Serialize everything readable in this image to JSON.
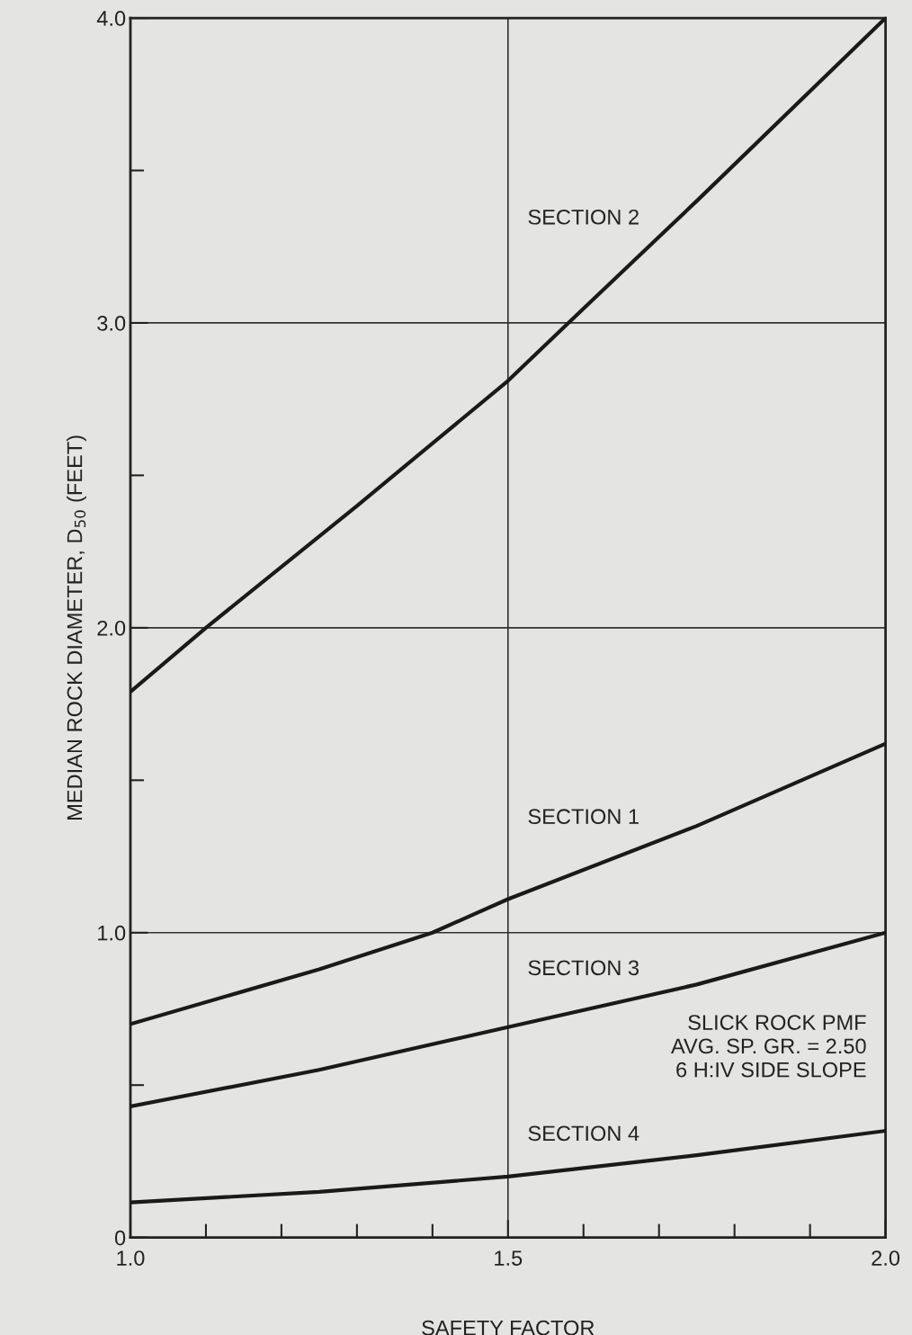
{
  "chart_data": {
    "type": "line",
    "xlabel": "SAFETY FACTOR",
    "ylabel": "MEDIAN ROCK DIAMETER, D$_{50}$ (FEET)",
    "series": [
      {
        "name": "SECTION 2",
        "color": "#1a1a1a",
        "x": [
          1.0,
          1.1,
          1.3,
          1.5,
          1.58,
          1.75,
          2.0
        ],
        "values": [
          1.79,
          2.0,
          2.4,
          2.81,
          3.0,
          3.4,
          4.0
        ]
      },
      {
        "name": "SECTION 1",
        "color": "#1a1a1a",
        "x": [
          1.0,
          1.25,
          1.4,
          1.5,
          1.75,
          2.0
        ],
        "values": [
          0.7,
          0.88,
          1.0,
          1.11,
          1.35,
          1.62
        ]
      },
      {
        "name": "SECTION 3",
        "color": "#1a1a1a",
        "x": [
          1.0,
          1.25,
          1.5,
          1.75,
          2.0
        ],
        "values": [
          0.43,
          0.55,
          0.69,
          0.83,
          1.0
        ]
      },
      {
        "name": "SECTION 4",
        "color": "#1a1a1a",
        "x": [
          1.0,
          1.25,
          1.5,
          1.75,
          2.0
        ],
        "values": [
          0.115,
          0.15,
          0.2,
          0.27,
          0.35
        ]
      }
    ],
    "annotations": [
      "SLICK ROCK PMF\nAVG. SP. GR. = 2.50\n6 H:IV SIDE SLOPE"
    ],
    "xlim": [
      1.0,
      2.0
    ],
    "ylim": [
      0,
      4.0
    ],
    "xticks": [
      {
        "value": 1.0,
        "label": "1.0"
      },
      {
        "value": 1.1,
        "label": null
      },
      {
        "value": 1.2,
        "label": null
      },
      {
        "value": 1.3,
        "label": null
      },
      {
        "value": 1.4,
        "label": null
      },
      {
        "value": 1.5,
        "label": "1.5"
      },
      {
        "value": 1.6,
        "label": null
      },
      {
        "value": 1.7,
        "label": null
      },
      {
        "value": 1.8,
        "label": null
      },
      {
        "value": 1.9,
        "label": null
      },
      {
        "value": 2.0,
        "label": "2.0"
      }
    ],
    "yticks": [
      0,
      {
        "value": 0.5,
        "label": null
      },
      {
        "value": 1.0,
        "label": "1.0"
      },
      {
        "value": 1.5,
        "label": null
      },
      {
        "value": 2.0,
        "label": "2.0"
      },
      {
        "value": 2.5,
        "label": null
      },
      {
        "value": 3.0,
        "label": "3.0"
      },
      {
        "value": 3.5,
        "label": null
      },
      {
        "value": 4.0,
        "label": "4.0"
      }
    ],
    "grid": true,
    "legend": false,
    "marker": "none",
    "line_style": "solid"
  }
}
